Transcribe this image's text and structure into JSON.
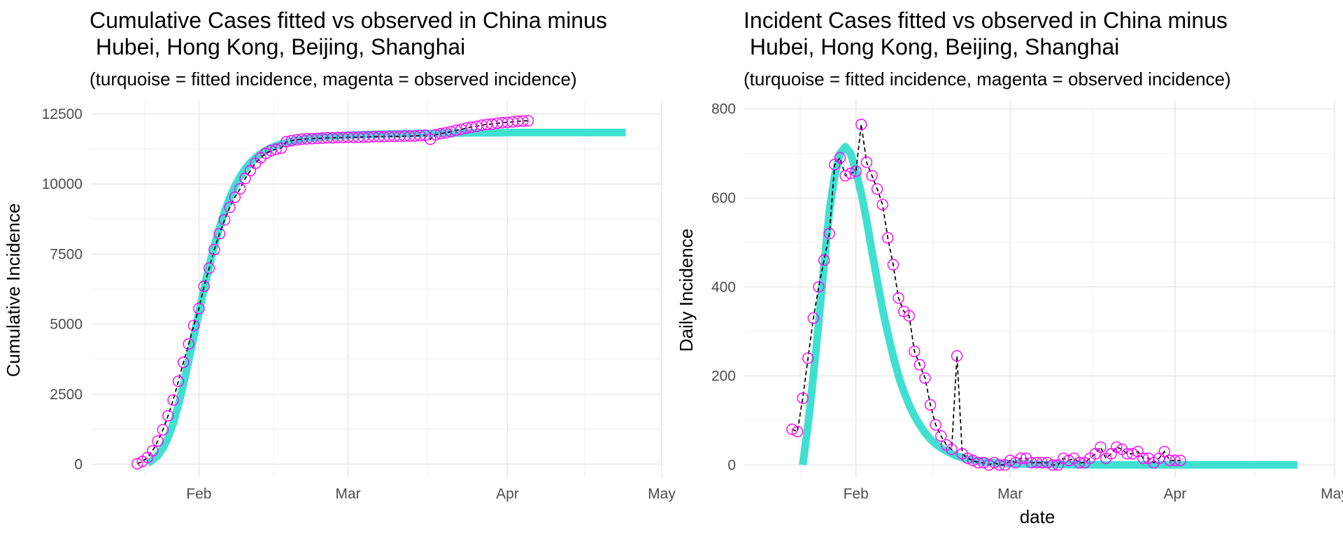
{
  "charts": [
    {
      "title": [
        "Cumulative Cases fitted vs observed in China minus",
        " Hubei, Hong Kong, Beijing, Shanghai"
      ],
      "subtitle": "(turquoise = fitted incidence, magenta = observed incidence)",
      "ylabel": "Cumulative Incidence",
      "xlabel": ""
    },
    {
      "title": [
        "Incident Cases fitted vs observed in China minus",
        " Hubei, Hong Kong, Beijing, Shanghai"
      ],
      "subtitle": "(turquoise = fitted incidence, magenta = observed incidence)",
      "ylabel": "Daily Incidence",
      "xlabel": "date"
    }
  ],
  "colors": {
    "fitted": "#40e0d0",
    "observed_points": "#ff00ff",
    "observed_line": "#000000",
    "grid": "#e6e6e6"
  },
  "chart_data": [
    {
      "type": "line",
      "title": "Cumulative Cases fitted vs observed in China minus Hubei, Hong Kong, Beijing, Shanghai",
      "subtitle": "(turquoise = fitted incidence, magenta = observed incidence)",
      "xlabel": "",
      "ylabel": "Cumulative Incidence",
      "x_ticks": [
        "Feb",
        "Mar",
        "Apr",
        "May"
      ],
      "y_ticks": [
        0,
        2500,
        5000,
        7500,
        10000,
        12500
      ],
      "xlim": [
        "2020-01-11",
        "2020-05-01"
      ],
      "ylim": [
        -500,
        13000
      ],
      "grid": true,
      "series": [
        {
          "name": "fitted",
          "start": "2020-01-22",
          "values": [
            40,
            150,
            310,
            570,
            950,
            1460,
            2110,
            2860,
            3690,
            4550,
            5420,
            6270,
            7070,
            7800,
            8450,
            9020,
            9510,
            9920,
            10260,
            10540,
            10760,
            10940,
            11080,
            11200,
            11290,
            11370,
            11430,
            11480,
            11520,
            11560,
            11590,
            11620,
            11640,
            11660,
            11680,
            11700,
            11710,
            11720,
            11730,
            11740,
            11750,
            11760,
            11760,
            11770,
            11770,
            11780,
            11780,
            11790,
            11790,
            11790,
            11800,
            11800,
            11800,
            11810,
            11810,
            11810,
            11810,
            11820,
            11820,
            11820,
            11820,
            11820,
            11830,
            11830,
            11830,
            11830,
            11830,
            11830,
            11830,
            11830,
            11840,
            11840,
            11840,
            11840,
            11840,
            11840,
            11840,
            11840,
            11840,
            11840,
            11840,
            11840,
            11840,
            11840,
            11840,
            11840,
            11840,
            11840,
            11840,
            11840,
            11840,
            11840,
            11840,
            11840
          ]
        },
        {
          "name": "observed",
          "start": "2020-01-20",
          "values": [
            20,
            100,
            240,
            480,
            830,
            1230,
            1730,
            2290,
            2960,
            3640,
            4290,
            4950,
            5560,
            6350,
            7000,
            7660,
            8230,
            8720,
            9170,
            9530,
            9830,
            10200,
            10480,
            10740,
            10940,
            11090,
            11190,
            11240,
            11280,
            11510,
            11550,
            11580,
            11600,
            11610,
            11620,
            11630,
            11640,
            11650,
            11650,
            11660,
            11660,
            11670,
            11670,
            11670,
            11680,
            11680,
            11690,
            11690,
            11690,
            11700,
            11700,
            11700,
            11710,
            11710,
            11720,
            11730,
            11740,
            11600,
            11760,
            11800,
            11830,
            11870,
            11920,
            11950,
            12000,
            12030,
            12060,
            12100,
            12130,
            12140,
            12170,
            12190,
            12200,
            12220,
            12240,
            12250,
            12260
          ]
        }
      ]
    },
    {
      "type": "line",
      "title": "Incident Cases fitted vs observed in China minus Hubei, Hong Kong, Beijing, Shanghai",
      "subtitle": "(turquoise = fitted incidence, magenta = observed incidence)",
      "xlabel": "date",
      "ylabel": "Daily Incidence",
      "x_ticks": [
        "Feb",
        "Mar",
        "Apr",
        "May"
      ],
      "y_ticks": [
        0,
        200,
        400,
        600,
        800
      ],
      "xlim": [
        "2020-01-11",
        "2020-05-01"
      ],
      "ylim": [
        -30,
        820
      ],
      "grid": true,
      "series": [
        {
          "name": "fitted",
          "start": "2020-01-22",
          "values": [
            0,
            90,
            200,
            320,
            450,
            570,
            650,
            700,
            715,
            700,
            660,
            610,
            550,
            480,
            415,
            350,
            295,
            245,
            200,
            165,
            135,
            110,
            90,
            72,
            58,
            47,
            38,
            31,
            25,
            20,
            16,
            13,
            11,
            9,
            7,
            6,
            5,
            4,
            3.5,
            3,
            2.5,
            2,
            2,
            1.5,
            1.5,
            1,
            1,
            1,
            1,
            1,
            0.5,
            0.5,
            0.5,
            0.5,
            0.5,
            0,
            0,
            0,
            0,
            0,
            0,
            0,
            0,
            0,
            0,
            0,
            0,
            0,
            0,
            0,
            0,
            0,
            0,
            0,
            0,
            0,
            0,
            0,
            0,
            0,
            0,
            0,
            0,
            0,
            0,
            0,
            0,
            0,
            0,
            0,
            0,
            0,
            0,
            0
          ]
        },
        {
          "name": "observed",
          "start": "2020-01-20",
          "values": [
            80,
            75,
            150,
            240,
            330,
            400,
            460,
            520,
            675,
            690,
            650,
            655,
            660,
            765,
            680,
            650,
            620,
            585,
            510,
            450,
            375,
            345,
            335,
            255,
            225,
            195,
            135,
            90,
            65,
            45,
            35,
            245,
            25,
            15,
            10,
            5,
            5,
            0,
            5,
            0,
            0,
            10,
            5,
            15,
            15,
            5,
            5,
            5,
            5,
            0,
            0,
            15,
            10,
            15,
            5,
            5,
            15,
            25,
            40,
            15,
            25,
            40,
            35,
            25,
            25,
            30,
            15,
            15,
            5,
            15,
            30,
            10,
            10,
            10
          ]
        }
      ]
    }
  ]
}
